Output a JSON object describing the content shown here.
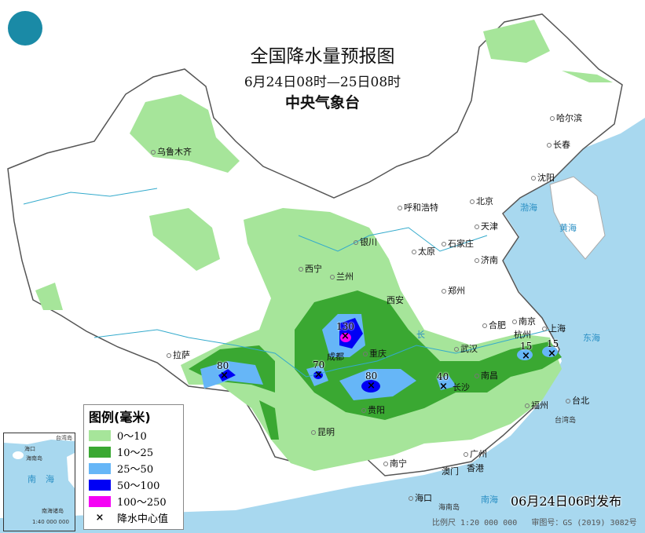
{
  "header": {
    "title": "全国降水量预报图",
    "period": "6月24日08时—25日08时",
    "issuer": "中央气象台",
    "logo_icon": "cma-logo"
  },
  "cities": [
    "乌鲁木齐",
    "哈尔滨",
    "长春",
    "沈阳",
    "呼和浩特",
    "北京",
    "天津",
    "银川",
    "太原",
    "石家庄",
    "济南",
    "西宁",
    "兰州",
    "郑州",
    "西安",
    "合肥",
    "南京",
    "上海",
    "杭州",
    "武汉",
    "成都",
    "重庆",
    "拉萨",
    "长沙",
    "南昌",
    "福州",
    "台北",
    "贵阳",
    "昆明",
    "南宁",
    "广州",
    "澳门",
    "香港",
    "海口"
  ],
  "seas": {
    "bohai": "渤海",
    "huanghai": "黄海",
    "donghai": "东海",
    "nanhai": "南海",
    "hainan": "海南岛",
    "taiwan": "台湾岛",
    "changjiang": "长"
  },
  "rain_centers": [
    {
      "value": "130",
      "place": "成都北"
    },
    {
      "value": "80",
      "place": "西藏东南"
    },
    {
      "value": "70",
      "place": "四川西南"
    },
    {
      "value": "80",
      "place": "贵州北"
    },
    {
      "value": "40",
      "place": "长沙"
    },
    {
      "value": "15",
      "place": "杭州"
    },
    {
      "value": "15",
      "place": "上海南"
    }
  ],
  "legend": {
    "title": "图例(毫米)",
    "items": [
      {
        "label": "0～10",
        "color": "#a6e59a"
      },
      {
        "label": "10～25",
        "color": "#3aa832"
      },
      {
        "label": "25～50",
        "color": "#66b6f7"
      },
      {
        "label": "50～100",
        "color": "#0000f5"
      },
      {
        "label": "100～250",
        "color": "#f500f5"
      }
    ],
    "center_label": "降水中心值",
    "center_icon": "×"
  },
  "inset": {
    "sea": "南海",
    "islands": "南海诸岛",
    "scale": "1:40 000 000",
    "haikou": "海口",
    "hainan": "海南岛",
    "taiwan": "台湾岛"
  },
  "footer": {
    "issued": "06月24日06时发布",
    "scale": "比例尺 1:20 000 000",
    "approval": "审图号：GS (2019) 3082号"
  },
  "colors": {
    "sea": "#a8d8ef",
    "land": "#ffffff",
    "border": "#888888"
  }
}
